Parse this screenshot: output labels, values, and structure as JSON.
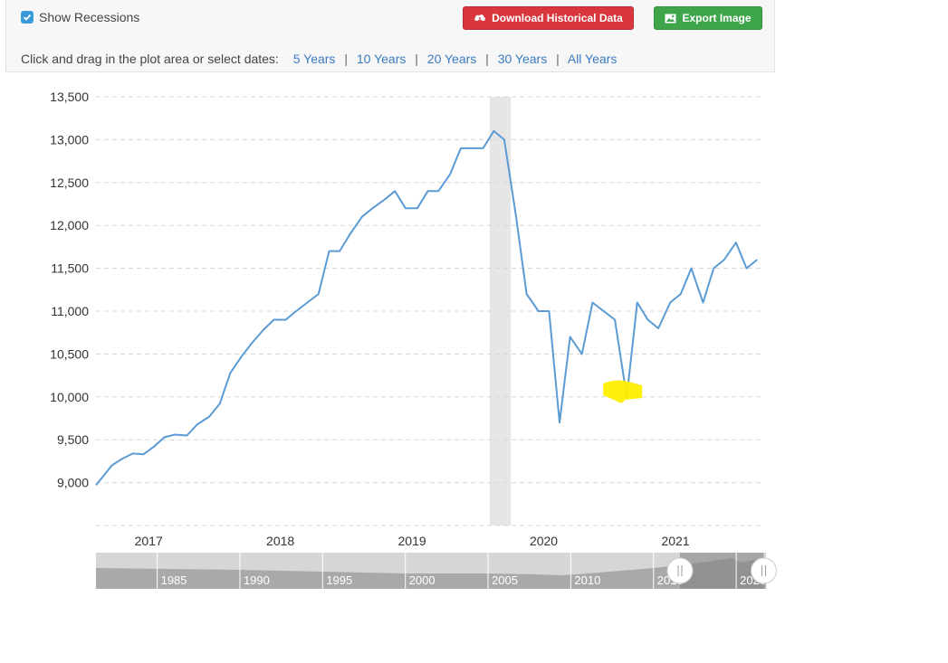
{
  "toolbar": {
    "show_recessions_label": "Show Recessions",
    "show_recessions_checked": true,
    "download_label": "Download Historical Data",
    "export_label": "Export Image",
    "prompt": "Click and drag in the plot area or select dates:",
    "ranges": [
      "5 Years",
      "10 Years",
      "20 Years",
      "30 Years",
      "All Years"
    ]
  },
  "colors": {
    "line": "#5b9bd5",
    "recession": "#e6e6e6",
    "download_button": "#d9363e",
    "export_button": "#3fa54a",
    "link": "#3a7bbf",
    "highlight": "#ffee00"
  },
  "chart_data": {
    "type": "line",
    "title": "",
    "xlabel": "",
    "ylabel": "",
    "xlim": [
      2016.6,
      2021.66
    ],
    "ylim": [
      8500,
      13500
    ],
    "y_ticks": [
      9000,
      9500,
      10000,
      10500,
      11000,
      11500,
      12000,
      12500,
      13000,
      13500
    ],
    "y_tick_labels": [
      "9,000",
      "9,500",
      "10,000",
      "10,500",
      "11,000",
      "11,500",
      "12,000",
      "12,500",
      "13,000",
      "13,500"
    ],
    "x_ticks": [
      2017,
      2018,
      2019,
      2020,
      2021
    ],
    "x_tick_labels": [
      "2017",
      "2018",
      "2019",
      "2020",
      "2021"
    ],
    "grid": true,
    "recession_bands": [
      [
        2019.59,
        2019.75
      ]
    ],
    "highlight_marker_at": [
      2020.63,
      10050
    ],
    "series": [
      {
        "x": [
          2016.6,
          2016.72,
          2016.8,
          2016.88,
          2016.96,
          2017.04,
          2017.12,
          2017.2,
          2017.29,
          2017.37,
          2017.46,
          2017.54,
          2017.62,
          2017.7,
          2017.78,
          2017.87,
          2017.95,
          2018.04,
          2018.12,
          2018.29,
          2018.37,
          2018.45,
          2018.53,
          2018.62,
          2018.7,
          2018.79,
          2018.87,
          2018.95,
          2019.04,
          2019.12,
          2019.2,
          2019.29,
          2019.37,
          2019.45,
          2019.54,
          2019.62,
          2019.7,
          2019.79,
          2019.87,
          2019.96,
          2020.04,
          2020.12,
          2020.2,
          2020.29,
          2020.37,
          2020.54,
          2020.63,
          2020.71,
          2020.79,
          2020.87,
          2020.96,
          2021.04,
          2021.12,
          2021.21,
          2021.29,
          2021.37,
          2021.46,
          2021.54,
          2021.62
        ],
        "values": [
          8970,
          9200,
          9280,
          9340,
          9330,
          9420,
          9530,
          9560,
          9550,
          9680,
          9770,
          9920,
          10280,
          10460,
          10620,
          10780,
          10900,
          10900,
          11000,
          11200,
          11700,
          11700,
          11900,
          12100,
          12200,
          12300,
          12400,
          12200,
          12200,
          12400,
          12400,
          12600,
          12900,
          12900,
          12900,
          13100,
          13000,
          12100,
          11200,
          11000,
          11000,
          9700,
          10700,
          10500,
          11100,
          10900,
          10000,
          11100,
          10900,
          10800,
          11100,
          11200,
          11500,
          11100,
          11500,
          11600,
          11800,
          11500,
          11600
        ]
      }
    ],
    "navigator": {
      "labels": [
        "1985",
        "1990",
        "1995",
        "2000",
        "2005",
        "2010",
        "2015",
        "2020"
      ],
      "label_years": [
        1985,
        1990,
        1995,
        2000,
        2005,
        2010,
        2015,
        2020
      ],
      "year_range": [
        1981.3,
        2021.8
      ],
      "selected_range": [
        2016.6,
        2021.66
      ]
    }
  }
}
